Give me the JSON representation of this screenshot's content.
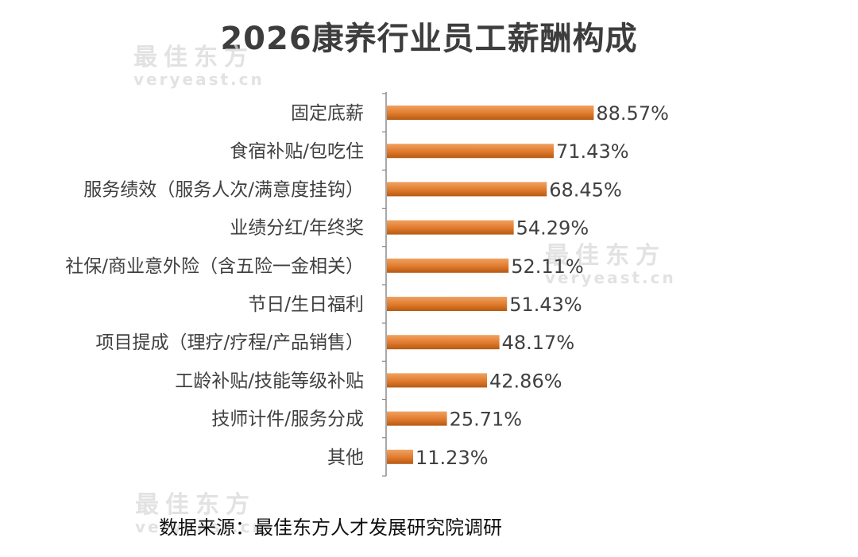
{
  "chart_data": {
    "type": "bar",
    "orientation": "horizontal",
    "title": "2026康养行业员工薪酬构成",
    "categories": [
      "固定底薪",
      "食宿补贴/包吃住",
      "服务绩效（服务人次/满意度挂钩）",
      "业绩分红/年终奖",
      "社保/商业意外险（含五险一金相关）",
      "节日/生日福利",
      "项目提成（理疗/疗程/产品销售）",
      "工龄补贴/技能等级补贴",
      "技师计件/服务分成",
      "其他"
    ],
    "values": [
      88.57,
      71.43,
      68.45,
      54.29,
      52.11,
      51.43,
      48.17,
      42.86,
      25.71,
      11.23
    ],
    "data_labels": [
      "88.57%",
      "71.43%",
      "68.45%",
      "54.29%",
      "52.11%",
      "51.43%",
      "48.17%",
      "42.86%",
      "25.71%",
      "11.23%"
    ],
    "xlim": [
      0,
      90
    ],
    "grid": false,
    "legend": "none",
    "colors": {
      "bar": "#e07a2c",
      "bar_light": "#f0a262",
      "bar_dark": "#b65a14",
      "label": "#404040",
      "axis": "#8c8c8c"
    }
  },
  "watermark": {
    "brand": "最佳东方",
    "domain": "veryeast.cn"
  },
  "source_note": "数据来源：最佳东方人才发展研究院调研"
}
